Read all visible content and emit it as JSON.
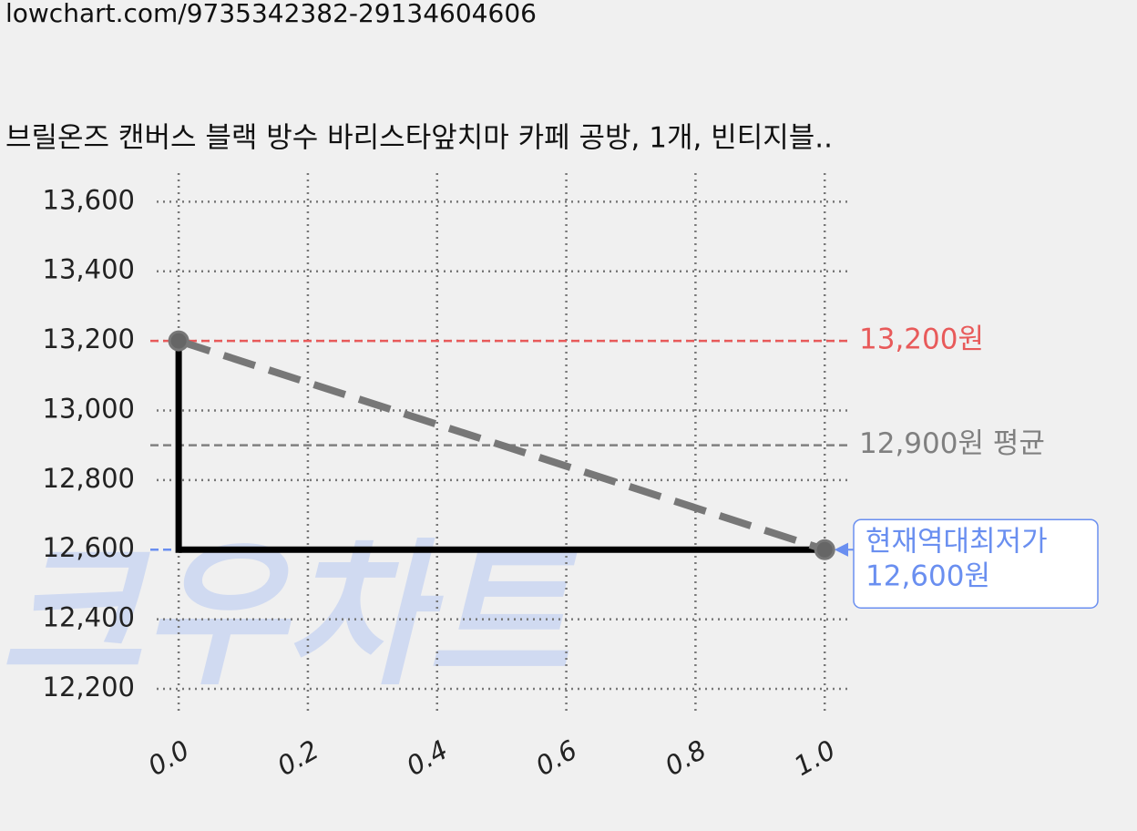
{
  "url": "lowchart.com/9735342382-29134604606",
  "chart_data": {
    "type": "line",
    "title": "브릴온즈 캔버스 블랙 방수 바리스타앞치마 카페 공방, 1개, 빈티지블..",
    "watermark": "크우차트",
    "x": [
      0,
      1
    ],
    "series": [
      {
        "values": [
          13200,
          12600
        ],
        "color": "#000000",
        "style": "step-pre"
      },
      {
        "values": [
          13200,
          12600
        ],
        "color": "#777777",
        "style": "dashed",
        "markers": true
      }
    ],
    "xlim": [
      -0.034,
      1.042
    ],
    "ylim": [
      12124,
      13682
    ],
    "xticks": [
      {
        "value": 0,
        "label": "0.0"
      },
      0.2,
      0.4,
      0.6,
      0.8,
      {
        "value": 1,
        "label": "1.0"
      }
    ],
    "yticks": [
      {
        "value": 12200,
        "label": "12,200"
      },
      {
        "value": 12400,
        "label": "12,400"
      },
      {
        "value": 12600,
        "label": "12,600"
      },
      {
        "value": 12800,
        "label": "12,800"
      },
      {
        "value": 13000,
        "label": "13,000"
      },
      {
        "value": 13200,
        "label": "13,200"
      },
      {
        "value": 13400,
        "label": "13,400"
      },
      {
        "value": 13600,
        "label": "13,600"
      }
    ],
    "grid": true,
    "reference_lines": [
      {
        "value": 13200,
        "label": [
          "13,200원"
        ],
        "color": "#e85a5a"
      },
      {
        "value": 12900,
        "label": [
          "12,900원 평균"
        ],
        "color": "#808080"
      },
      {
        "value": 12600,
        "label": [
          "현재역대최저가",
          "12,600원"
        ],
        "color": "#6a8ff0",
        "boxed": true
      }
    ]
  }
}
